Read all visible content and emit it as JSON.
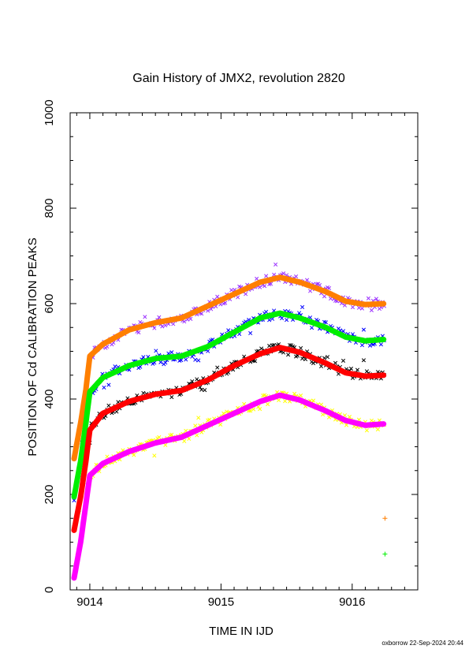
{
  "chart_data": {
    "type": "scatter",
    "title": "Gain History of JMX2, revolution 2820",
    "xlabel": "TIME IN IJD",
    "ylabel": "POSITION OF Cd CALIBRATION PEAKS",
    "xlim": [
      9013.85,
      9016.5
    ],
    "ylim": [
      0,
      1000
    ],
    "x_ticks": [
      {
        "value": 9014,
        "label": "9014"
      },
      {
        "value": 9015,
        "label": "9015"
      },
      {
        "value": 9016,
        "label": "9016"
      }
    ],
    "y_ticks": [
      {
        "value": 0,
        "label": "0"
      },
      {
        "value": 200,
        "label": "200"
      },
      {
        "value": 400,
        "label": "400"
      },
      {
        "value": 600,
        "label": "600"
      },
      {
        "value": 800,
        "label": "800"
      },
      {
        "value": 1000,
        "label": "1000"
      }
    ],
    "credit": "oxborrow 22-Sep-2024 20:44",
    "series": [
      {
        "color": "#ff7f00",
        "scatter_color": "#9b30ff",
        "marker": "+",
        "x": [
          9013.88,
          9013.93,
          9013.97,
          9014.0,
          9014.1,
          9014.3,
          9014.5,
          9014.7,
          9014.9,
          9015.1,
          9015.3,
          9015.45,
          9015.6,
          9015.8,
          9015.95,
          9016.1,
          9016.25
        ],
        "y": [
          275,
          350,
          420,
          490,
          515,
          545,
          560,
          570,
          595,
          620,
          645,
          655,
          645,
          625,
          605,
          598,
          600
        ]
      },
      {
        "color": "#00ee00",
        "scatter_color": "#0000ff",
        "marker": "+",
        "x": [
          9013.88,
          9013.93,
          9013.97,
          9014.0,
          9014.1,
          9014.3,
          9014.5,
          9014.7,
          9014.9,
          9015.1,
          9015.3,
          9015.45,
          9015.6,
          9015.8,
          9015.95,
          9016.1,
          9016.25
        ],
        "y": [
          195,
          270,
          350,
          415,
          445,
          470,
          485,
          490,
          510,
          540,
          570,
          580,
          570,
          550,
          530,
          522,
          525
        ]
      },
      {
        "color": "#ff0000",
        "scatter_color": "#000000",
        "marker": "+",
        "x": [
          9013.88,
          9013.93,
          9013.97,
          9014.0,
          9014.1,
          9014.3,
          9014.5,
          9014.7,
          9014.9,
          9015.1,
          9015.3,
          9015.45,
          9015.6,
          9015.8,
          9015.95,
          9016.1,
          9016.25
        ],
        "y": [
          125,
          195,
          270,
          335,
          370,
          395,
          410,
          418,
          440,
          470,
          495,
          508,
          498,
          475,
          455,
          448,
          450
        ]
      },
      {
        "color": "#ff00ff",
        "scatter_color": "#ffff00",
        "marker": "+",
        "x": [
          9013.88,
          9013.93,
          9013.97,
          9014.0,
          9014.1,
          9014.3,
          9014.5,
          9014.7,
          9014.9,
          9015.1,
          9015.3,
          9015.45,
          9015.6,
          9015.8,
          9015.95,
          9016.1,
          9016.25
        ],
        "y": [
          25,
          100,
          180,
          240,
          265,
          290,
          308,
          320,
          345,
          370,
          395,
          408,
          398,
          375,
          355,
          345,
          348
        ]
      }
    ],
    "outliers": [
      {
        "x": 9016.25,
        "y": 150,
        "color": "#ff7f00"
      },
      {
        "x": 9016.25,
        "y": 75,
        "color": "#00ee00"
      }
    ]
  }
}
